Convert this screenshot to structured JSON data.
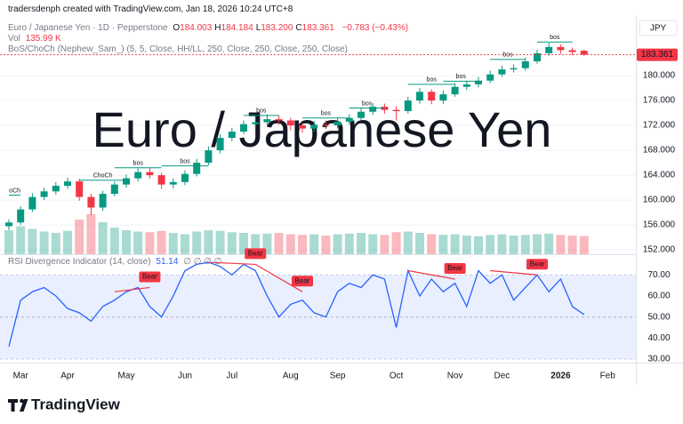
{
  "header": {
    "credit": "tradersdenph created with TradingView.com, Jan 18, 2026 10:24 UTC+8",
    "symbol": "Euro / Japanese Yen · 1D · Pepperstone",
    "ohlc": [
      {
        "key": "O",
        "value": "184.003"
      },
      {
        "key": "H",
        "value": "184.184"
      },
      {
        "key": "L",
        "value": "183.200"
      },
      {
        "key": "C",
        "value": "183.361"
      }
    ],
    "change": "−0.783 (−0.43%)",
    "vol_key": "Vol",
    "vol": "135.99 K",
    "indicator": "BoS/ChoCh (Nephew_Sam_) (5, 5, Close, HH/LL, 250, Close, 250, Close, 250, Close)",
    "currency": "JPY"
  },
  "chart_data": [
    {
      "type": "candlestick",
      "watermark": "Euro / Japanese Yen",
      "categories": [
        null,
        "Mar",
        null,
        null,
        null,
        "Apr",
        null,
        null,
        null,
        null,
        "May",
        null,
        null,
        null,
        null,
        "Jun",
        null,
        null,
        null,
        "Jul",
        null,
        null,
        null,
        null,
        "Aug",
        null,
        null,
        null,
        "Sep",
        null,
        null,
        null,
        null,
        "Oct",
        null,
        null,
        null,
        null,
        "Nov",
        null,
        null,
        null,
        "Dec",
        null,
        null,
        null,
        null,
        "2026",
        null,
        null,
        null,
        "Feb"
      ],
      "open": [
        155.8,
        156.4,
        158.5,
        160.5,
        161.4,
        162.3,
        163,
        160.5,
        158.8,
        161,
        162.5,
        163.5,
        164.5,
        164,
        162.5,
        162.9,
        164.2,
        166,
        168,
        170,
        171,
        172.2,
        172.5,
        173,
        172.8,
        172,
        171.5,
        172.1,
        172,
        172.6,
        173.2,
        174.2,
        175,
        174.5,
        174.3,
        176,
        177.4,
        176,
        177,
        178.2,
        178.6,
        179.2,
        180.2,
        181,
        181.2,
        182.3,
        183.6,
        184.6,
        184.1,
        184.003,
        null,
        null
      ],
      "high": [
        156.9,
        159.0,
        161.1,
        162.0,
        162.9,
        163.6,
        163.4,
        161.0,
        161.5,
        163.0,
        164.1,
        165.1,
        165.2,
        164.4,
        163.5,
        164.8,
        166.6,
        168.6,
        170.6,
        171.6,
        172.8,
        173.2,
        173.8,
        173.6,
        173.2,
        172.5,
        172.7,
        172.8,
        173.2,
        173.8,
        174.8,
        175.6,
        175.5,
        175.1,
        176.6,
        178.0,
        177.8,
        177.6,
        178.8,
        179.2,
        179.8,
        180.8,
        181.6,
        181.8,
        182.9,
        184.2,
        185.3,
        185.0,
        184.5,
        184.184,
        null,
        null
      ],
      "low": [
        155.2,
        156.0,
        158.1,
        160.0,
        160.9,
        161.8,
        159.9,
        157.6,
        158.3,
        160.6,
        162.0,
        163.0,
        163.5,
        161.8,
        161.9,
        162.4,
        163.8,
        165.6,
        167.5,
        169.5,
        170.6,
        171.7,
        172.0,
        172.1,
        171.2,
        170.8,
        171.0,
        171.4,
        171.5,
        172.1,
        172.8,
        173.7,
        173.9,
        172.8,
        173.9,
        175.5,
        175.4,
        175.5,
        176.6,
        177.7,
        178.1,
        178.8,
        179.8,
        180.5,
        180.8,
        181.9,
        183.2,
        183.5,
        183.3,
        183.2,
        null,
        null
      ],
      "close": [
        156.4,
        158.5,
        160.5,
        161.4,
        162.3,
        163,
        160.5,
        158.8,
        161,
        162.5,
        163.5,
        164.5,
        164,
        162.5,
        162.9,
        164.2,
        166,
        168,
        170,
        171,
        172.2,
        172.5,
        173,
        172.8,
        172,
        171.5,
        172.1,
        172,
        172.6,
        173.2,
        174.2,
        175,
        174.5,
        174.3,
        176,
        177.4,
        176,
        177,
        178.2,
        178.6,
        179.2,
        180.2,
        181,
        181.2,
        182.3,
        183.6,
        184.6,
        184.1,
        183.8,
        183.361,
        null,
        null
      ],
      "volume": [
        180,
        210,
        190,
        170,
        160,
        175,
        260,
        300,
        240,
        200,
        180,
        170,
        165,
        175,
        160,
        150,
        170,
        180,
        175,
        165,
        160,
        150,
        155,
        160,
        150,
        145,
        150,
        140,
        150,
        155,
        160,
        150,
        145,
        165,
        170,
        160,
        150,
        145,
        150,
        140,
        135,
        145,
        150,
        140,
        145,
        150,
        155,
        145,
        140,
        135.99,
        null,
        null
      ],
      "up_color": "#089981",
      "down_color": "#f23645",
      "line_color": "#f23645",
      "ylim": [
        151.3,
        189.3
      ],
      "yticks": [
        {
          "value": 152,
          "label": "152.000"
        },
        {
          "value": 156,
          "label": "156.000"
        },
        {
          "value": 160,
          "label": "160.000"
        },
        {
          "value": 164,
          "label": "164.000"
        },
        {
          "value": 168,
          "label": "168.000"
        },
        {
          "value": 172,
          "label": "172.000"
        },
        {
          "value": 176,
          "label": "176.000"
        },
        {
          "value": 180,
          "label": "180.000"
        }
      ],
      "grid": true,
      "annotations": [
        {
          "text": "oCh",
          "level": 160.8,
          "from": 0,
          "to": 1
        },
        {
          "text": "ChoCh",
          "level": 163.2,
          "from": 6,
          "to": 10
        },
        {
          "text": "bos",
          "level": 165.2,
          "from": 9,
          "to": 13
        },
        {
          "text": "bos",
          "level": 165.5,
          "from": 13,
          "to": 17
        },
        {
          "text": "bos",
          "level": 173.6,
          "from": 20,
          "to": 23
        },
        {
          "text": "bos",
          "level": 173.2,
          "from": 25,
          "to": 29
        },
        {
          "text": "bos",
          "level": 174.8,
          "from": 29,
          "to": 32
        },
        {
          "text": "bos",
          "level": 178.6,
          "from": 34,
          "to": 38
        },
        {
          "text": "bos",
          "level": 179.1,
          "from": 37,
          "to": 40
        },
        {
          "text": "bos",
          "level": 182.6,
          "from": 41,
          "to": 44
        },
        {
          "text": "bos",
          "level": 185.4,
          "from": 45,
          "to": 48
        }
      ]
    },
    {
      "type": "line",
      "title": "RSI Divergence Indicator (14, close)",
      "na_marks": "∅ ∅ ∅ ∅",
      "color": "#2962ff",
      "values": [
        36,
        58,
        62,
        64,
        60,
        54,
        52,
        48,
        55,
        58,
        62,
        64,
        55,
        50,
        60,
        72,
        75,
        76,
        74,
        70,
        75,
        72,
        60,
        50,
        56,
        58,
        52,
        50,
        62,
        66,
        64,
        70,
        68,
        45,
        72,
        60,
        68,
        62,
        66,
        55,
        72,
        66,
        70,
        58,
        64,
        70,
        62,
        68,
        55,
        51.14,
        null,
        null
      ],
      "ylim": [
        28.3,
        79.4
      ],
      "yticks": [
        {
          "value": 30,
          "label": "30.00"
        },
        {
          "value": 40,
          "label": "40.00"
        },
        {
          "value": 50,
          "label": "50.00"
        },
        {
          "value": 60,
          "label": "60.00"
        },
        {
          "value": 70,
          "label": "70.00"
        }
      ],
      "band": [
        30,
        70
      ],
      "midline": 50,
      "annotations": [
        {
          "text": "Bear",
          "from": 9,
          "to": 12,
          "rsi_from": 62,
          "rsi_to": 64
        },
        {
          "text": "Bear",
          "from": 17,
          "to": 21,
          "rsi_from": 76,
          "rsi_to": 75
        },
        {
          "text": "Bear",
          "from": 21,
          "to": 25,
          "rsi_from": 75,
          "rsi_to": 62
        },
        {
          "text": "Bear",
          "from": 34,
          "to": 38,
          "rsi_from": 72,
          "rsi_to": 68
        },
        {
          "text": "Bear",
          "from": 41,
          "to": 45,
          "rsi_from": 72,
          "rsi_to": 70
        }
      ]
    }
  ],
  "footer": {
    "brand": "TradingView"
  }
}
